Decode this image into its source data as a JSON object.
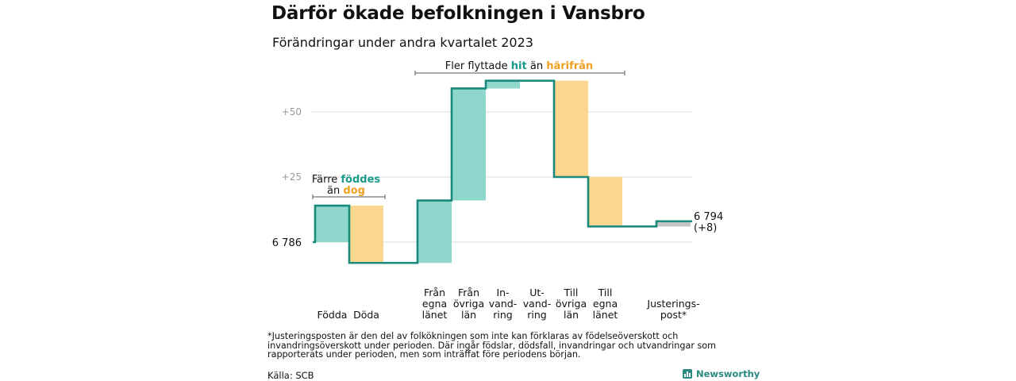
{
  "header": {
    "title": "Därför ökade befolkningen i Vansbro",
    "subtitle": "Förändringar under andra kvartalet 2023"
  },
  "colors": {
    "increase": "#8fd6cc",
    "decrease": "#fbd68e",
    "adjustment": "#c4c4c4",
    "line": "#1a8a7d",
    "teal_text": "#1a9a8a",
    "orange_text": "#f0a020",
    "grid": "#dddddd",
    "tick": "#9a9a9a"
  },
  "annotations": {
    "births": {
      "pre": "Färre",
      "hi1": "föddes",
      "mid": "än",
      "hi2": "dog"
    },
    "migration": {
      "pre": "Fler flyttade",
      "hi1": "hit",
      "mid": "än",
      "hi2": "härifrån"
    }
  },
  "chart_data": {
    "type": "waterfall",
    "title": "Därför ökade befolkningen i Vansbro",
    "subtitle": "Förändringar under andra kvartalet 2023",
    "start_value": 6786,
    "start_label": "6 786",
    "end_value": 6794,
    "end_label": "6 794",
    "end_change_label": "(+8)",
    "y_ticks": [
      {
        "value": 25,
        "label": "+25"
      },
      {
        "value": 50,
        "label": "+50"
      }
    ],
    "ylim": [
      -8,
      62
    ],
    "steps": [
      {
        "category": [
          "Födda"
        ],
        "change": 14,
        "kind": "increase"
      },
      {
        "category": [
          "Döda"
        ],
        "change": -22,
        "kind": "decrease"
      },
      {
        "category": [
          "Från",
          "egna",
          "länet"
        ],
        "change": 24,
        "kind": "increase"
      },
      {
        "category": [
          "Från",
          "övriga",
          "län"
        ],
        "change": 43,
        "kind": "increase"
      },
      {
        "category": [
          "In-",
          "vand-",
          "ring"
        ],
        "change": 3,
        "kind": "increase"
      },
      {
        "category": [
          "Ut-",
          "vand-",
          "ring"
        ],
        "change": 0,
        "kind": "decrease"
      },
      {
        "category": [
          "Till",
          "övriga",
          "län"
        ],
        "change": -37,
        "kind": "decrease"
      },
      {
        "category": [
          "Till",
          "egna",
          "länet"
        ],
        "change": -19,
        "kind": "decrease"
      },
      {
        "category": [
          "Justerings-",
          "post*"
        ],
        "change": 2,
        "kind": "adjustment"
      }
    ]
  },
  "footnote": "*Justeringsposten är den del av folkökningen som inte kan förklaras av födelseöverskott och invandringsöverskott under perioden. Där ingår födslar, dödsfall, invandringar och utvandringar som rapporterats under perioden, men som inträffat före periodens början.",
  "source": "Källa: SCB",
  "brand": {
    "name": "Newsworthy",
    "icon": "bar-chart-logo-icon"
  }
}
